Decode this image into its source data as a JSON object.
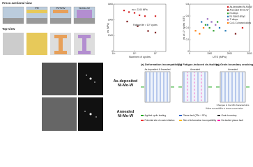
{
  "chart_data": [
    {
      "type": "scatter",
      "ylabel": "σa (MPa)",
      "xlabel": "Number of cycles",
      "xlog": true,
      "xlim": [
        1000,
        100000000
      ],
      "xticks": [
        {
          "value": 1000,
          "label": "10³"
        },
        {
          "value": 100000,
          "label": "10⁵"
        },
        {
          "value": 10000000,
          "label": "10⁷"
        }
      ],
      "ylim": [
        0,
        3000
      ],
      "yticks": [
        0,
        1000,
        2000,
        3000
      ],
      "annotations": [
        "σa ≈ 2240 MPa",
        "Fatigue life > 10⁷ cycles"
      ],
      "series": [
        {
          "name": "As-deposited Ni-Mo-W",
          "color": "#d62728",
          "x": [
            10000,
            30000,
            100000,
            300000,
            1000000,
            10000000
          ],
          "values": [
            2600,
            2500,
            2450,
            2300,
            2240,
            2240
          ]
        },
        {
          "name": "Annealed Ni-Mo-W",
          "color": "#7f1f1f",
          "x": [
            20000,
            200000,
            2000000,
            10000000
          ],
          "values": [
            1900,
            1600,
            1300,
            1200
          ]
        }
      ]
    },
    {
      "type": "scatter",
      "ylabel": "σa at 10⁷ cycles / UTS",
      "xlabel": "UTS (MPa)",
      "legend": "upper right",
      "xlim": [
        0,
        3000
      ],
      "xticks": [
        0,
        1000,
        2000,
        3000
      ],
      "ylim": [
        0,
        0.8
      ],
      "yticks": [
        0,
        0.2,
        0.4,
        0.6,
        0.8
      ],
      "series": [
        {
          "name": "As-deposited Ni-Mo-W",
          "color": "#d62728",
          "x": [
            2650
          ],
          "values": [
            0.4
          ]
        },
        {
          "name": "Annealed Ni-Mo-W",
          "color": "#7f1f1f",
          "x": [
            2300
          ],
          "values": [
            0.3
          ]
        },
        {
          "name": "Ni alloys",
          "color": "#2ca02c",
          "x": [
            800,
            1000,
            1200,
            1400
          ],
          "values": [
            0.45,
            0.4,
            0.35,
            0.5
          ]
        },
        {
          "name": "Fe based alloys",
          "color": "#1f77b4",
          "x": [
            600,
            900,
            1500,
            1800
          ],
          "values": [
            0.5,
            0.45,
            0.4,
            0.35
          ]
        },
        {
          "name": "Ti alloys",
          "color": "#9467bd",
          "x": [
            900,
            1100,
            1300
          ],
          "values": [
            0.55,
            0.5,
            0.45
          ]
        },
        {
          "name": "Cu & Cu based alloys",
          "color": "#ff7f0e",
          "x": [
            300,
            500,
            700
          ],
          "values": [
            0.35,
            0.3,
            0.4
          ]
        }
      ]
    }
  ],
  "left": {
    "cross_label": "Cross-sectional view",
    "top_label": "Top-view",
    "layer_labels": [
      "Ni-Mo-W",
      "PR",
      "Pt/Ti/W"
    ],
    "tem_labels": [
      "As-deposited\nNi-Mo-W",
      "Annealed\nNi-Mo-W"
    ]
  },
  "mechanisms": {
    "titles": [
      "(a) Deformation incompatibility",
      "(b) Fatigue-induced de-faulting",
      "(c) Grain boundary cracking"
    ],
    "subtitles": [
      "As-deposited & Annealed",
      "Annealed",
      "Annealed"
    ],
    "note": "Changes in the GB characteristics",
    "note2": "Higher susceptibility to stress concentration",
    "legend": [
      "Applied cyclic loading",
      "Planar fault (TBs + SFs)",
      "Grain boundary",
      "Potential site of crack initiation",
      "Site of deformation incompatibility",
      "De-faulted planar fault"
    ]
  }
}
